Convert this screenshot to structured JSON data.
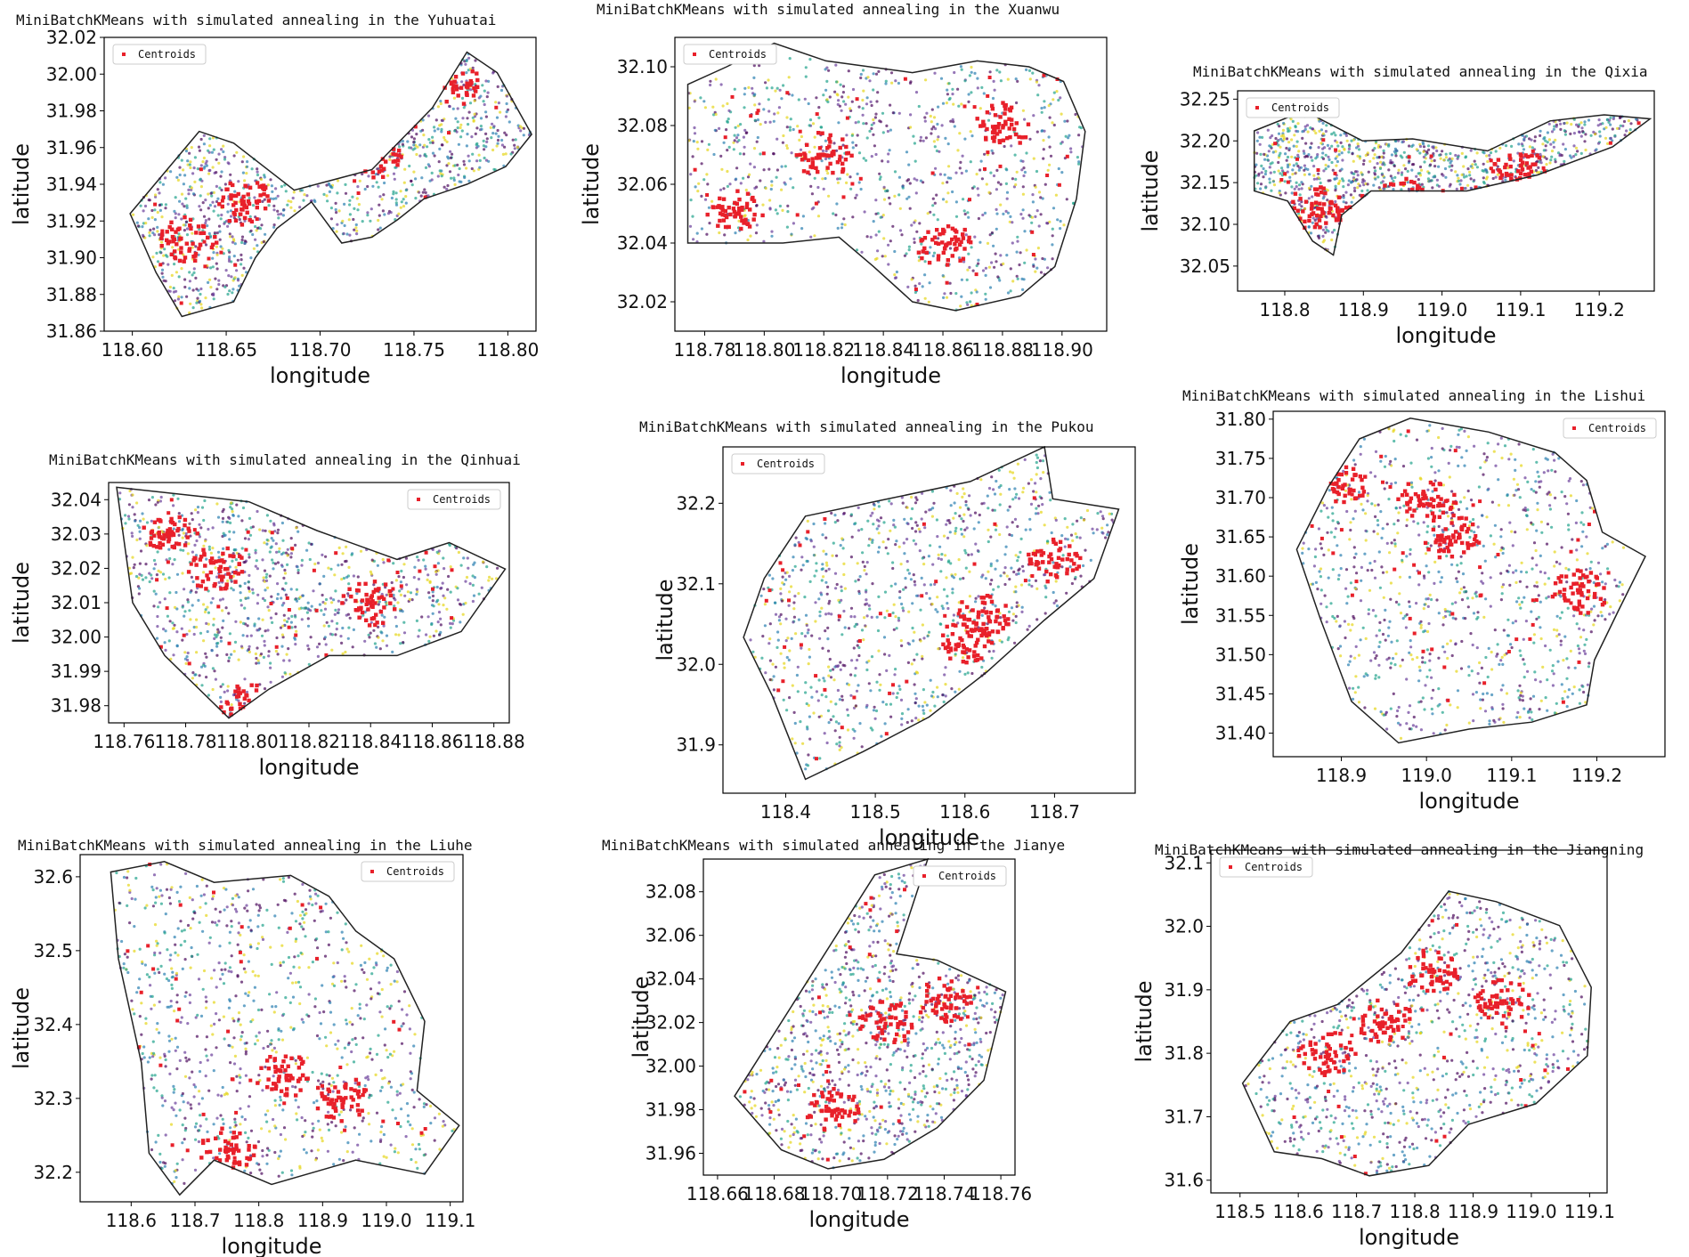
{
  "figure": {
    "description_free": true,
    "colors": {
      "centroid": "#e8202a",
      "boundary": "#222222",
      "points": [
        "#4b0a5c",
        "#2a7fb0",
        "#21a38b",
        "#e6d51a",
        "#6a3d9a"
      ]
    }
  },
  "chart_data": [
    {
      "type": "scatter",
      "title": "MiniBatchKMeans with simulated annealing in the Yuhuatai",
      "xlabel": "longitude",
      "ylabel": "latitude",
      "legend": "Centroids",
      "legend_loc": "upper-left",
      "xticks": [
        "118.60",
        "118.65",
        "118.70",
        "118.75",
        "118.80"
      ],
      "yticks": [
        "31.86",
        "31.88",
        "31.90",
        "31.92",
        "31.94",
        "31.96",
        "31.98",
        "32.00",
        "32.02"
      ],
      "xlim": [
        118.585,
        118.815
      ],
      "ylim": [
        31.86,
        32.02
      ],
      "centroid_clusters": [
        [
          118.66,
          31.93
        ],
        [
          118.73,
          31.955
        ],
        [
          118.77,
          31.995
        ],
        [
          118.63,
          31.91
        ]
      ]
    },
    {
      "type": "scatter",
      "title": "MiniBatchKMeans with simulated annealing in the Xuanwu",
      "xlabel": "longitude",
      "ylabel": "latitude",
      "legend": "Centroids",
      "legend_loc": "upper-left",
      "xticks": [
        "118.78",
        "118.80",
        "118.82",
        "118.84",
        "118.86",
        "118.88",
        "118.90"
      ],
      "yticks": [
        "32.02",
        "32.04",
        "32.06",
        "32.08",
        "32.10"
      ],
      "xlim": [
        118.77,
        118.915
      ],
      "ylim": [
        32.01,
        32.11
      ],
      "centroid_clusters": [
        [
          118.79,
          32.05
        ],
        [
          118.82,
          32.07
        ],
        [
          118.86,
          32.04
        ],
        [
          118.88,
          32.08
        ]
      ]
    },
    {
      "type": "scatter",
      "title": "MiniBatchKMeans with simulated annealing in the Qixia",
      "xlabel": "longitude",
      "ylabel": "latitude",
      "legend": "Centroids",
      "legend_loc": "upper-left",
      "xticks": [
        "118.8",
        "118.9",
        "119.0",
        "119.1",
        "119.2"
      ],
      "yticks": [
        "32.05",
        "32.10",
        "32.15",
        "32.20",
        "32.25"
      ],
      "xlim": [
        118.74,
        119.27
      ],
      "ylim": [
        32.02,
        32.26
      ],
      "centroid_clusters": [
        [
          118.84,
          32.12
        ],
        [
          118.9,
          32.11
        ],
        [
          118.95,
          32.13
        ],
        [
          119.1,
          32.17
        ]
      ]
    },
    {
      "type": "scatter",
      "title": "MiniBatchKMeans with simulated annealing in the Qinhuai",
      "xlabel": "longitude",
      "ylabel": "latitude",
      "legend": "Centroids",
      "legend_loc": "upper-right",
      "xticks": [
        "118.76",
        "118.78",
        "118.80",
        "118.82",
        "118.84",
        "118.86",
        "118.88"
      ],
      "yticks": [
        "31.98",
        "31.99",
        "32.00",
        "32.01",
        "32.02",
        "32.03",
        "32.04"
      ],
      "xlim": [
        118.755,
        118.885
      ],
      "ylim": [
        31.975,
        32.045
      ],
      "centroid_clusters": [
        [
          118.775,
          32.03
        ],
        [
          118.79,
          32.02
        ],
        [
          118.8,
          31.98
        ],
        [
          118.84,
          32.01
        ]
      ]
    },
    {
      "type": "scatter",
      "title": "MiniBatchKMeans with simulated annealing in the Pukou",
      "xlabel": "longitude",
      "ylabel": "latitude",
      "legend": "Centroids",
      "legend_loc": "upper-left",
      "xticks": [
        "118.4",
        "118.5",
        "118.6",
        "118.7"
      ],
      "yticks": [
        "31.9",
        "32.0",
        "32.1",
        "32.2"
      ],
      "xlim": [
        118.33,
        118.79
      ],
      "ylim": [
        31.84,
        32.27
      ],
      "centroid_clusters": [
        [
          118.62,
          32.06
        ],
        [
          118.7,
          32.13
        ],
        [
          118.6,
          32.03
        ]
      ]
    },
    {
      "type": "scatter",
      "title": "MiniBatchKMeans with simulated annealing in the Lishui",
      "xlabel": "longitude",
      "ylabel": "latitude",
      "legend": "Centroids",
      "legend_loc": "upper-right",
      "xticks": [
        "118.9",
        "119.0",
        "119.1",
        "119.2"
      ],
      "yticks": [
        "31.40",
        "31.45",
        "31.50",
        "31.55",
        "31.60",
        "31.65",
        "31.70",
        "31.75",
        "31.80"
      ],
      "xlim": [
        118.82,
        119.28
      ],
      "ylim": [
        31.37,
        31.81
      ],
      "centroid_clusters": [
        [
          119.03,
          31.65
        ],
        [
          119.0,
          31.7
        ],
        [
          119.18,
          31.58
        ],
        [
          118.9,
          31.72
        ]
      ]
    },
    {
      "type": "scatter",
      "title": "MiniBatchKMeans with simulated annealing in the Liuhe",
      "xlabel": "longitude",
      "ylabel": "latitude",
      "legend": "Centroids",
      "legend_loc": "upper-right",
      "xticks": [
        "118.6",
        "118.7",
        "118.8",
        "118.9",
        "119.0",
        "119.1"
      ],
      "yticks": [
        "32.2",
        "32.3",
        "32.4",
        "32.5",
        "32.6"
      ],
      "xlim": [
        118.52,
        119.12
      ],
      "ylim": [
        32.16,
        32.63
      ],
      "centroid_clusters": [
        [
          118.84,
          32.33
        ],
        [
          118.75,
          32.23
        ],
        [
          118.93,
          32.3
        ]
      ]
    },
    {
      "type": "scatter",
      "title": "MiniBatchKMeans with simulated annealing in the Jianye",
      "xlabel": "longitude",
      "ylabel": "latitude",
      "legend": "Centroids",
      "legend_loc": "upper-right",
      "xticks": [
        "118.66",
        "118.68",
        "118.70",
        "118.72",
        "118.74",
        "118.76"
      ],
      "xticks_overlapped_note": "",
      "yticks": [
        "31.96",
        "31.98",
        "32.00",
        "32.02",
        "32.04",
        "32.06",
        "32.08"
      ],
      "xlim": [
        118.655,
        118.765
      ],
      "ylim": [
        31.95,
        32.095
      ],
      "centroid_clusters": [
        [
          118.72,
          32.02
        ],
        [
          118.74,
          32.03
        ],
        [
          118.7,
          31.98
        ]
      ]
    },
    {
      "type": "scatter",
      "title": "MiniBatchKMeans with simulated annealing in the Jiangning",
      "xlabel": "longitude",
      "ylabel": "latitude",
      "legend": "Centroids",
      "legend_loc": "upper-left",
      "xticks": [
        "118.5",
        "118.6",
        "118.7",
        "118.8",
        "118.9",
        "119.0",
        "119.1"
      ],
      "yticks": [
        "31.6",
        "31.7",
        "31.8",
        "31.9",
        "32.0",
        "32.1"
      ],
      "xlim": [
        118.45,
        119.13
      ],
      "ylim": [
        31.58,
        32.12
      ],
      "centroid_clusters": [
        [
          118.83,
          31.93
        ],
        [
          118.75,
          31.85
        ],
        [
          118.95,
          31.88
        ],
        [
          118.65,
          31.8
        ]
      ]
    }
  ]
}
